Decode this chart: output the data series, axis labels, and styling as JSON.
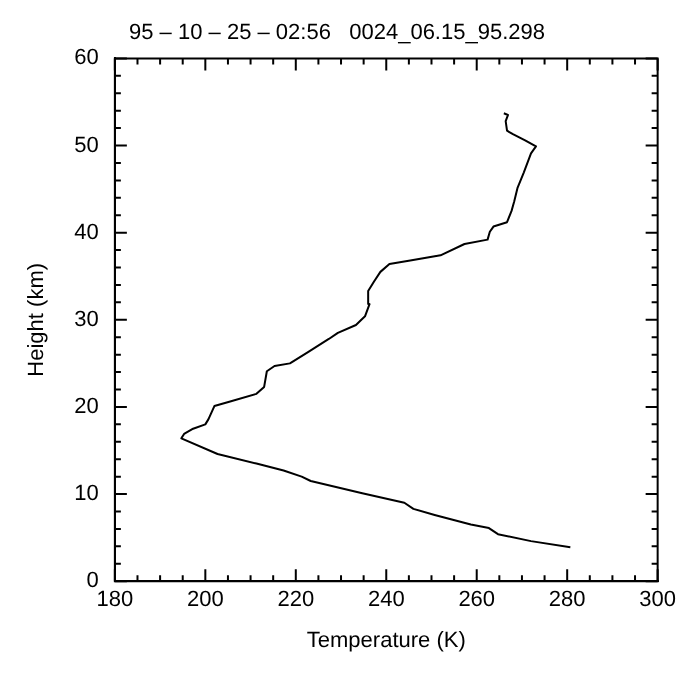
{
  "chart_data": {
    "type": "line",
    "title": "95 – 10 – 25 – 02:56   0024_06.15_95.298",
    "xlabel": "Temperature (K)",
    "ylabel": "Height (km)",
    "xlim": [
      180,
      300
    ],
    "xticks": [
      180,
      200,
      220,
      240,
      260,
      280,
      300
    ],
    "ylim": [
      0,
      60
    ],
    "yticks": [
      0,
      10,
      20,
      30,
      40,
      50,
      60
    ],
    "grid": false,
    "legend": false,
    "marker": "none",
    "line_style": "solid",
    "series": [
      {
        "color": "#000000",
        "x": [
          280.7,
          272,
          264.7,
          262.7,
          258.7,
          250.7,
          246,
          244,
          234.7,
          223.3,
          221.3,
          217.3,
          211.3,
          202.7,
          194.7,
          195.3,
          197.3,
          200,
          200.7,
          202,
          205.3,
          211.3,
          213,
          213.6,
          215.3,
          218.7,
          222.7,
          227.3,
          229.3,
          233.3,
          235.3,
          236.3,
          236,
          237.3,
          238.7,
          240.7,
          245.3,
          252,
          257.3,
          262.4,
          262.9,
          263.7,
          266.7,
          267.7,
          268.3,
          269,
          270.4,
          272,
          273.1,
          270.7,
          268,
          266.7,
          266.4,
          266.9,
          266
        ],
        "values": [
          3.9,
          4.6,
          5.4,
          6.1,
          6.5,
          7.6,
          8.3,
          9,
          10.1,
          11.5,
          12,
          12.7,
          13.5,
          14.6,
          16.4,
          16.9,
          17.5,
          18,
          18.6,
          20.1,
          20.6,
          21.5,
          22.3,
          24.1,
          24.7,
          25,
          26.3,
          27.8,
          28.5,
          29.4,
          30.4,
          31.8,
          33.3,
          34.4,
          35.5,
          36.4,
          36.8,
          37.4,
          38.7,
          39.2,
          40.1,
          40.7,
          41.2,
          42.5,
          43.6,
          45.1,
          46.9,
          49.1,
          49.9,
          50.6,
          51.3,
          51.7,
          52.8,
          53.5,
          53.7
        ]
      }
    ]
  }
}
